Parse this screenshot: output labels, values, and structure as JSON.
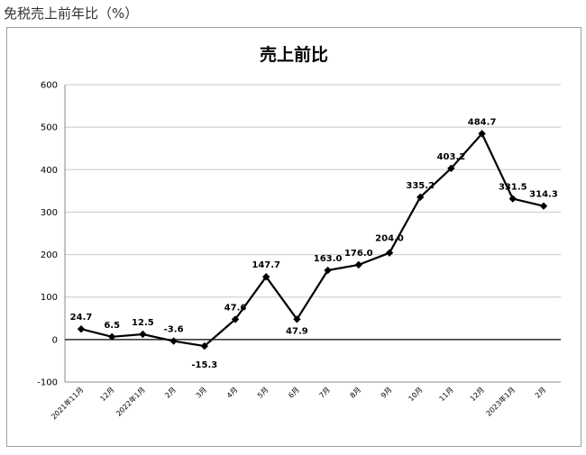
{
  "page": {
    "heading": "免税売上前年比（%）"
  },
  "chart_data": {
    "type": "line",
    "title": "売上前比",
    "xlabel": "",
    "ylabel": "",
    "ylim": [
      -100,
      600
    ],
    "yticks": [
      -100,
      0,
      100,
      200,
      300,
      400,
      500,
      600
    ],
    "grid": true,
    "legend": "none",
    "categories": [
      "2021年11月",
      "12月",
      "2022年1月",
      "2月",
      "3月",
      "4月",
      "5月",
      "6月",
      "7月",
      "8月",
      "9月",
      "10月",
      "11月",
      "12月",
      "2023年1月",
      "2月"
    ],
    "series": [
      {
        "values": [
          24.7,
          6.5,
          12.5,
          -3.6,
          -15.3,
          47.6,
          147.7,
          47.9,
          163.0,
          176.0,
          204.0,
          335.2,
          403.2,
          484.7,
          331.5,
          314.3
        ],
        "labels": [
          "24.7",
          "6.5",
          "12.5",
          "-3.6",
          "-15.3",
          "47.6",
          "147.7",
          "47.9",
          "163.0",
          "176.0",
          "204.0",
          "335.2",
          "403.2",
          "484.7",
          "331.5",
          "314.3"
        ],
        "color": "#000000"
      }
    ]
  }
}
